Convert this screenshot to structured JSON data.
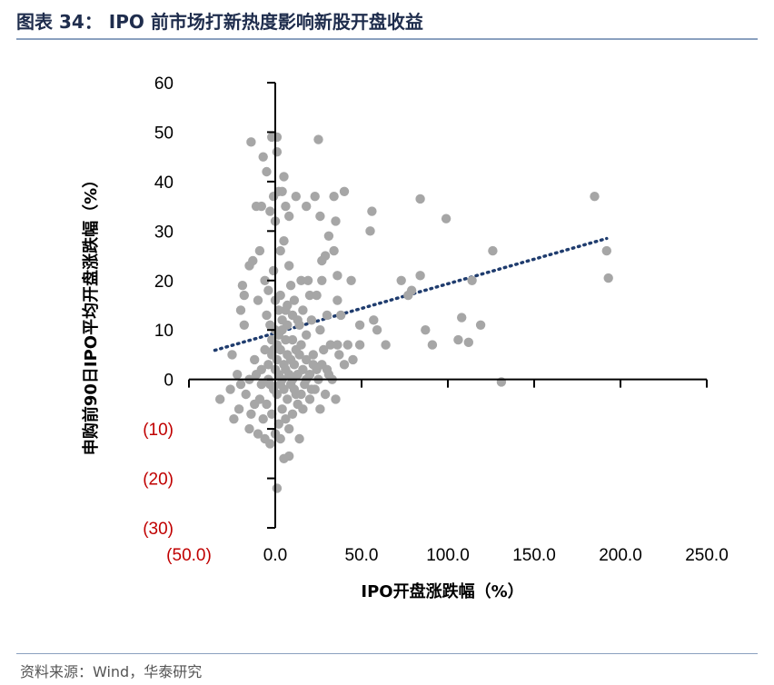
{
  "header": {
    "title": "图表 34： IPO 前市场打新热度影响新股开盘收益"
  },
  "footer": {
    "source": "资料来源：Wind，华泰研究"
  },
  "chart_data": {
    "type": "scatter",
    "title": "",
    "xlabel": "IPO开盘涨跌幅（%）",
    "ylabel": "申购前90日IPO平均开盘涨跌幅（%）",
    "xlim": [
      -50,
      250
    ],
    "ylim": [
      -30,
      60
    ],
    "x_ticks": [
      -50,
      0,
      50,
      100,
      150,
      200,
      250
    ],
    "x_tick_labels": [
      "(50.0)",
      "0.0",
      "50.0",
      "100.0",
      "150.0",
      "200.0",
      "250.0"
    ],
    "y_ticks": [
      60,
      50,
      40,
      30,
      20,
      10,
      0,
      -10,
      -20,
      -30
    ],
    "y_tick_labels": [
      "60",
      "50",
      "40",
      "30",
      "20",
      "10",
      "0",
      "(10)",
      "(20)",
      "(30)"
    ],
    "colors": {
      "points": "#a6a6a6",
      "trendline": "#1f3c6e",
      "negative_labels": "#c00000"
    },
    "trendline": {
      "style": "dotted",
      "x": [
        -35,
        192
      ],
      "y": [
        5.9,
        28.5
      ]
    },
    "points": [
      [
        -14,
        48
      ],
      [
        -7,
        45
      ],
      [
        -5,
        42
      ],
      [
        -2,
        49
      ],
      [
        1,
        49
      ],
      [
        1,
        46
      ],
      [
        5,
        41
      ],
      [
        2,
        38
      ],
      [
        -1,
        37
      ],
      [
        4,
        38
      ],
      [
        -11,
        35
      ],
      [
        -8,
        35
      ],
      [
        6,
        35
      ],
      [
        8,
        33
      ],
      [
        12,
        37
      ],
      [
        18,
        35
      ],
      [
        23,
        37
      ],
      [
        25,
        48.5
      ],
      [
        26,
        33
      ],
      [
        31,
        29
      ],
      [
        34,
        37
      ],
      [
        40,
        38
      ],
      [
        35,
        32
      ],
      [
        56,
        34
      ],
      [
        55,
        30
      ],
      [
        84,
        36.5
      ],
      [
        99,
        32.5
      ],
      [
        185,
        37
      ],
      [
        192,
        26
      ],
      [
        193,
        20.5
      ],
      [
        -3,
        34
      ],
      [
        0,
        32
      ],
      [
        5,
        28
      ],
      [
        3,
        26
      ],
      [
        -15,
        23
      ],
      [
        -13,
        24
      ],
      [
        -9,
        26
      ],
      [
        8,
        23
      ],
      [
        27,
        24
      ],
      [
        29,
        25
      ],
      [
        15,
        20
      ],
      [
        20,
        17
      ],
      [
        27,
        20
      ],
      [
        36,
        21
      ],
      [
        34,
        26
      ],
      [
        -19,
        19
      ],
      [
        -18,
        17
      ],
      [
        -10,
        16
      ],
      [
        -6,
        20
      ],
      [
        -4,
        18
      ],
      [
        -1,
        22
      ],
      [
        3,
        17
      ],
      [
        7,
        15
      ],
      [
        9,
        19
      ],
      [
        11,
        16
      ],
      [
        13,
        12
      ],
      [
        16,
        14
      ],
      [
        21,
        12
      ],
      [
        24,
        17
      ],
      [
        30,
        13
      ],
      [
        36,
        16
      ],
      [
        38,
        13
      ],
      [
        44,
        20
      ],
      [
        57,
        12
      ],
      [
        59,
        10
      ],
      [
        73,
        20
      ],
      [
        77,
        17
      ],
      [
        79,
        18
      ],
      [
        84,
        21
      ],
      [
        114,
        20
      ],
      [
        126,
        26
      ],
      [
        -20,
        14
      ],
      [
        -18,
        11
      ],
      [
        -5,
        13
      ],
      [
        -3,
        11
      ],
      [
        0,
        10
      ],
      [
        2,
        9
      ],
      [
        4,
        12
      ],
      [
        6,
        8
      ],
      [
        10,
        8
      ],
      [
        18,
        9
      ],
      [
        26,
        10
      ],
      [
        32,
        7
      ],
      [
        36,
        7
      ],
      [
        42,
        7
      ],
      [
        49,
        7
      ],
      [
        49,
        11
      ],
      [
        64,
        7
      ],
      [
        87,
        10
      ],
      [
        91,
        7
      ],
      [
        106,
        8
      ],
      [
        112,
        7.5
      ],
      [
        108,
        12.5
      ],
      [
        119,
        11
      ],
      [
        -25,
        5
      ],
      [
        -22,
        1
      ],
      [
        -15,
        0
      ],
      [
        -12,
        4
      ],
      [
        -8,
        2
      ],
      [
        -6,
        6
      ],
      [
        -4,
        3
      ],
      [
        -2,
        5
      ],
      [
        0,
        2
      ],
      [
        1,
        4
      ],
      [
        2,
        1
      ],
      [
        3,
        6
      ],
      [
        4,
        0
      ],
      [
        5,
        3
      ],
      [
        6,
        2
      ],
      [
        7,
        5
      ],
      [
        8,
        1
      ],
      [
        9,
        4
      ],
      [
        10,
        0
      ],
      [
        11,
        3
      ],
      [
        12,
        6
      ],
      [
        13,
        1
      ],
      [
        14,
        5
      ],
      [
        16,
        2
      ],
      [
        18,
        4
      ],
      [
        20,
        1
      ],
      [
        22,
        3
      ],
      [
        25,
        0
      ],
      [
        28,
        6
      ],
      [
        30,
        2
      ],
      [
        33,
        0
      ],
      [
        37,
        5
      ],
      [
        40,
        3
      ],
      [
        45,
        4
      ],
      [
        22,
        5
      ],
      [
        15,
        7
      ],
      [
        -3,
        -1
      ],
      [
        -1,
        -2
      ],
      [
        1,
        -3
      ],
      [
        3,
        -1
      ],
      [
        5,
        -2
      ],
      [
        7,
        -4
      ],
      [
        9,
        -1
      ],
      [
        11,
        -2
      ],
      [
        13,
        -5
      ],
      [
        15,
        -3
      ],
      [
        17,
        -1
      ],
      [
        20,
        -4
      ],
      [
        23,
        -2
      ],
      [
        26,
        -6
      ],
      [
        29,
        -3
      ],
      [
        35,
        -4
      ],
      [
        -5,
        -5
      ],
      [
        -7,
        -8
      ],
      [
        -2,
        -7
      ],
      [
        2,
        -9
      ],
      [
        4,
        -6
      ],
      [
        6,
        -8
      ],
      [
        8,
        -10
      ],
      [
        -9,
        -4
      ],
      [
        -12,
        -5
      ],
      [
        -17,
        -3
      ],
      [
        -21,
        -6
      ],
      [
        -24,
        -8
      ],
      [
        -32,
        -4
      ],
      [
        -15,
        -10
      ],
      [
        -10,
        -11
      ],
      [
        -6,
        -12
      ],
      [
        -3,
        -13
      ],
      [
        0,
        -11
      ],
      [
        3,
        -12
      ],
      [
        14,
        -12
      ],
      [
        5,
        -16
      ],
      [
        8,
        -15.5
      ],
      [
        1,
        -22
      ],
      [
        10,
        13
      ],
      [
        14,
        11
      ],
      [
        19,
        20
      ],
      [
        2,
        14
      ],
      [
        6,
        14
      ],
      [
        0,
        16
      ],
      [
        -1,
        6
      ],
      [
        -2,
        8
      ],
      [
        1,
        7
      ],
      [
        4,
        10
      ],
      [
        7,
        11
      ],
      [
        131,
        -0.5
      ],
      [
        12,
        -3
      ],
      [
        18,
        0
      ],
      [
        24,
        2
      ],
      [
        -8,
        -1
      ],
      [
        -11,
        1
      ],
      [
        -4,
        0
      ],
      [
        21,
        -2
      ],
      [
        27,
        3
      ],
      [
        31,
        1
      ],
      [
        -26,
        -2
      ],
      [
        -14,
        -7
      ],
      [
        10,
        -7
      ],
      [
        16,
        -6
      ],
      [
        -20,
        -1
      ]
    ]
  }
}
